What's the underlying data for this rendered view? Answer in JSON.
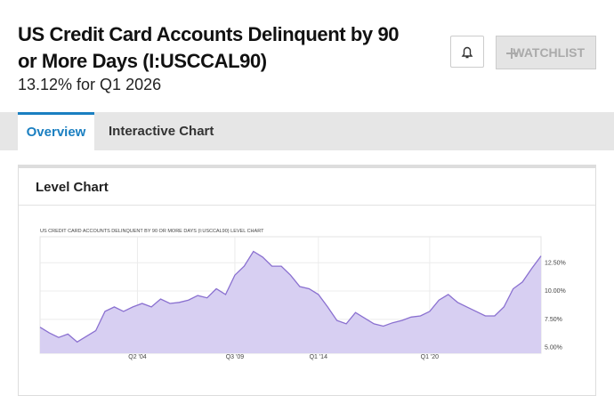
{
  "header": {
    "title": "US Credit Card Accounts Delinquent by 90 or More Days (I:USCCAL90)",
    "subtitle": "13.12% for Q1 2026"
  },
  "buttons": {
    "watchlist": "WATCHLIST"
  },
  "tabs": [
    "Overview",
    "Interactive Chart"
  ],
  "card": {
    "title": "Level Chart"
  },
  "chart_data": {
    "type": "area",
    "title": "US CREDIT CARD ACCOUNTS DELINQUENT BY 90 OR MORE DAYS (I:USCCAL90) LEVEL CHART",
    "x": [
      1999,
      1999.5,
      2000,
      2000.5,
      2001,
      2001.5,
      2002,
      2002.5,
      2003,
      2003.5,
      2004,
      2004.5,
      2005,
      2005.5,
      2006,
      2006.5,
      2007,
      2007.5,
      2008,
      2008.5,
      2009,
      2009.5,
      2010,
      2010.5,
      2011,
      2011.5,
      2012,
      2012.5,
      2013,
      2013.5,
      2014,
      2014.5,
      2015,
      2015.5,
      2016,
      2016.5,
      2017,
      2017.5,
      2018,
      2018.5,
      2019,
      2019.5,
      2020,
      2020.5,
      2021,
      2021.5,
      2022,
      2022.5,
      2023,
      2023.5,
      2024,
      2024.5,
      2025,
      2025.5,
      2026
    ],
    "values": [
      6.8,
      6.3,
      5.9,
      6.2,
      5.5,
      6.0,
      6.5,
      8.2,
      8.6,
      8.2,
      8.6,
      8.9,
      8.6,
      9.3,
      8.9,
      9.0,
      9.2,
      9.6,
      9.4,
      10.2,
      9.7,
      11.4,
      12.2,
      13.5,
      13.0,
      12.2,
      12.2,
      11.4,
      10.4,
      10.2,
      9.7,
      8.6,
      7.4,
      7.1,
      8.1,
      7.6,
      7.1,
      6.9,
      7.2,
      7.4,
      7.7,
      7.8,
      8.2,
      9.2,
      9.7,
      9.0,
      8.6,
      8.2,
      7.8,
      7.8,
      8.6,
      10.2,
      10.8,
      12.0,
      13.1
    ],
    "color": "#8a70d0",
    "fill": "#d7cff2",
    "xlim": [
      1999,
      2026
    ],
    "xticks": [
      {
        "value": 2004.25,
        "label": "Q2 '04"
      },
      {
        "value": 2009.5,
        "label": "Q3 '09"
      },
      {
        "value": 2014,
        "label": "Q1 '14"
      },
      {
        "value": 2020,
        "label": "Q1 '20"
      }
    ],
    "ylim": [
      4.5,
      14.8
    ],
    "yticks": [
      {
        "value": 5,
        "label": "5.00%"
      },
      {
        "value": 7.5,
        "label": "7.50%"
      },
      {
        "value": 10,
        "label": "10.00%"
      },
      {
        "value": 12.5,
        "label": "12.50%"
      }
    ],
    "grid": true
  }
}
